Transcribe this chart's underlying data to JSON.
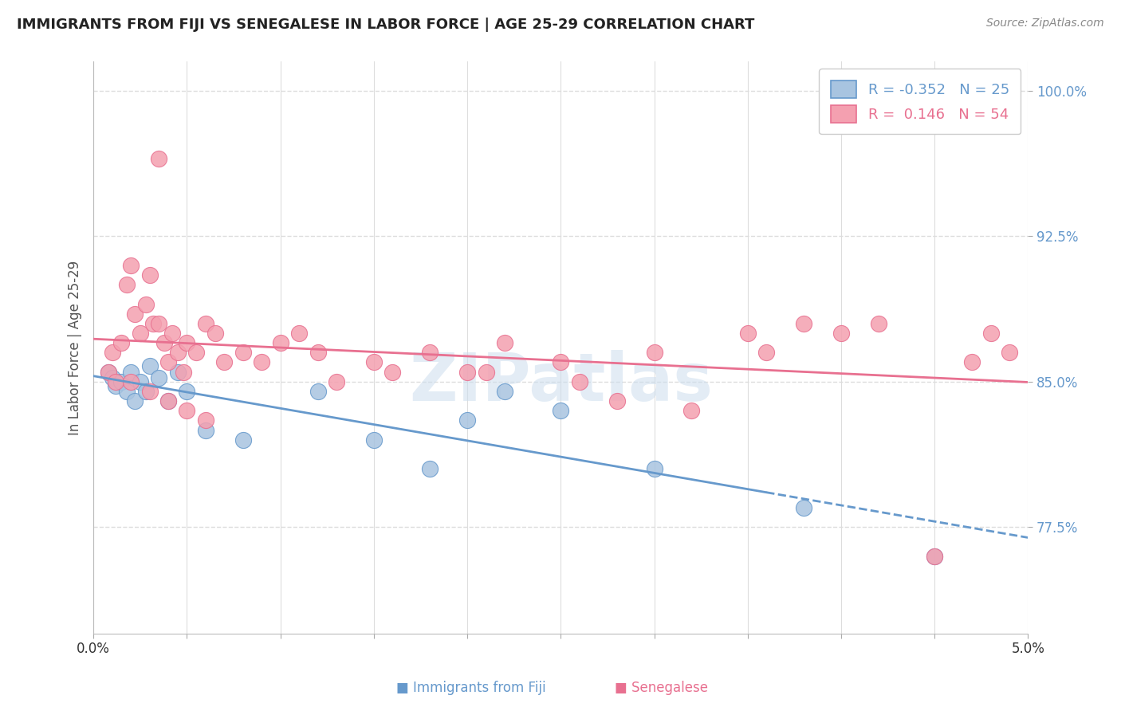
{
  "title": "IMMIGRANTS FROM FIJI VS SENEGALESE IN LABOR FORCE | AGE 25-29 CORRELATION CHART",
  "source": "Source: ZipAtlas.com",
  "ylabel": "In Labor Force | Age 25-29",
  "xlim": [
    0.0,
    5.0
  ],
  "ylim": [
    72.0,
    101.5
  ],
  "yticks": [
    77.5,
    85.0,
    92.5,
    100.0
  ],
  "ytick_labels": [
    "77.5%",
    "85.0%",
    "92.5%",
    "100.0%"
  ],
  "xticks": [
    0.0,
    0.5,
    1.0,
    1.5,
    2.0,
    2.5,
    3.0,
    3.5,
    4.0,
    4.5,
    5.0
  ],
  "xtick_labels": [
    "0.0%",
    "",
    "",
    "",
    "",
    "",
    "",
    "",
    "",
    "",
    "5.0%"
  ],
  "fiji_color": "#a8c4e0",
  "fiji_edge_color": "#6699cc",
  "senegal_color": "#f4a0b0",
  "senegal_edge_color": "#e87090",
  "fiji_R": -0.352,
  "fiji_N": 25,
  "senegal_R": 0.146,
  "senegal_N": 54,
  "fiji_scatter_x": [
    0.08,
    0.1,
    0.12,
    0.15,
    0.18,
    0.2,
    0.22,
    0.25,
    0.28,
    0.3,
    0.35,
    0.4,
    0.45,
    0.5,
    0.6,
    0.8,
    1.2,
    1.5,
    1.8,
    2.0,
    2.2,
    2.5,
    3.0,
    3.8,
    4.5
  ],
  "fiji_scatter_y": [
    85.5,
    85.2,
    84.8,
    85.0,
    84.5,
    85.5,
    84.0,
    85.0,
    84.5,
    85.8,
    85.2,
    84.0,
    85.5,
    84.5,
    82.5,
    82.0,
    84.5,
    82.0,
    80.5,
    83.0,
    84.5,
    83.5,
    80.5,
    78.5,
    76.0
  ],
  "senegal_scatter_x": [
    0.08,
    0.1,
    0.12,
    0.15,
    0.18,
    0.2,
    0.22,
    0.25,
    0.28,
    0.3,
    0.32,
    0.35,
    0.38,
    0.4,
    0.42,
    0.45,
    0.48,
    0.5,
    0.55,
    0.6,
    0.65,
    0.7,
    0.8,
    0.9,
    1.0,
    1.1,
    1.2,
    1.3,
    1.5,
    1.6,
    1.8,
    2.0,
    2.1,
    2.2,
    2.5,
    2.6,
    2.8,
    3.0,
    3.2,
    3.5,
    3.6,
    3.8,
    4.0,
    4.2,
    4.5,
    4.7,
    4.8,
    4.9,
    0.2,
    0.3,
    0.35,
    0.4,
    0.5,
    0.6
  ],
  "senegal_scatter_y": [
    85.5,
    86.5,
    85.0,
    87.0,
    90.0,
    91.0,
    88.5,
    87.5,
    89.0,
    90.5,
    88.0,
    88.0,
    87.0,
    86.0,
    87.5,
    86.5,
    85.5,
    87.0,
    86.5,
    88.0,
    87.5,
    86.0,
    86.5,
    86.0,
    87.0,
    87.5,
    86.5,
    85.0,
    86.0,
    85.5,
    86.5,
    85.5,
    85.5,
    87.0,
    86.0,
    85.0,
    84.0,
    86.5,
    83.5,
    87.5,
    86.5,
    88.0,
    87.5,
    88.0,
    76.0,
    86.0,
    87.5,
    86.5,
    85.0,
    84.5,
    96.5,
    84.0,
    83.5,
    83.0
  ],
  "background_color": "#ffffff",
  "grid_color": "#dddddd",
  "watermark": "ZIPatlas",
  "trendline_dashed_start_fiji": 3.6,
  "legend_fiji_label": "R = -0.352   N = 25",
  "legend_senegal_label": "R =  0.146   N = 54"
}
